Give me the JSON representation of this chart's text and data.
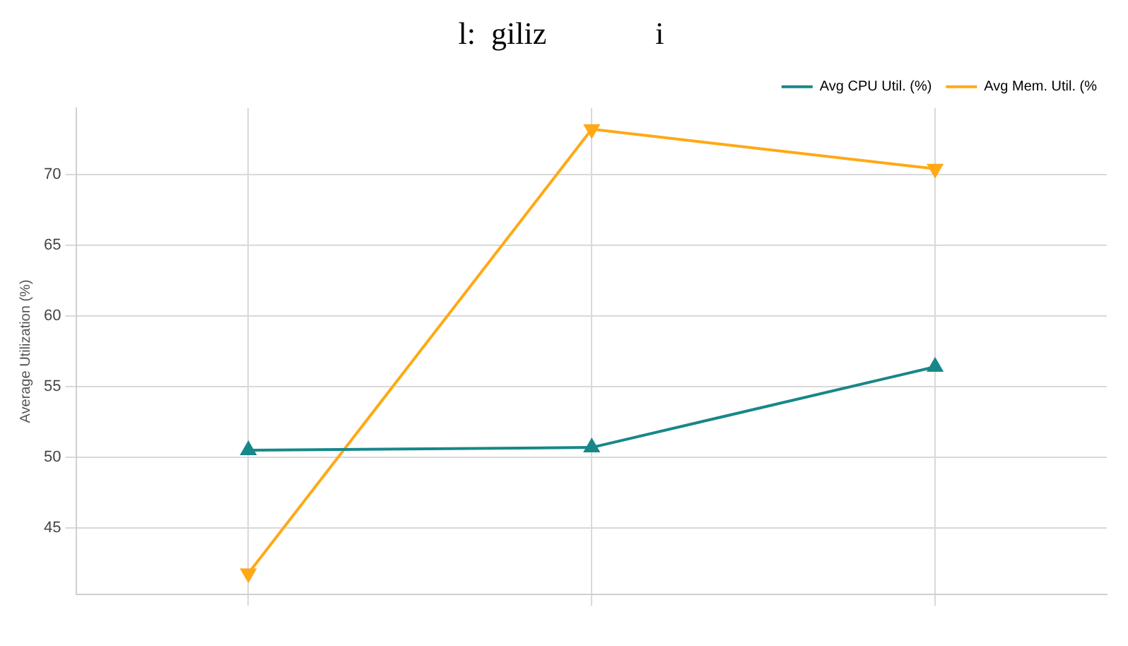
{
  "chart_data": {
    "type": "line",
    "title": "l:  giliz              i",
    "ylabel": "Average Utilization (%)",
    "categories": [
      null,
      null,
      null
    ],
    "series": [
      {
        "name": "Avg CPU Util. (%)",
        "color": "#17878a",
        "marker": "triangle",
        "values": [
          50.5,
          50.7,
          56.4
        ]
      },
      {
        "name": "Avg Mem. Util. (%",
        "color": "#ffa916",
        "marker": "triangle-down",
        "values": [
          41.8,
          73.2,
          70.4
        ]
      }
    ],
    "ylim": [
      40.3,
      74.7
    ],
    "yticks": [
      45,
      50,
      55,
      60,
      65,
      70
    ],
    "grid": true,
    "legend": "top right"
  }
}
